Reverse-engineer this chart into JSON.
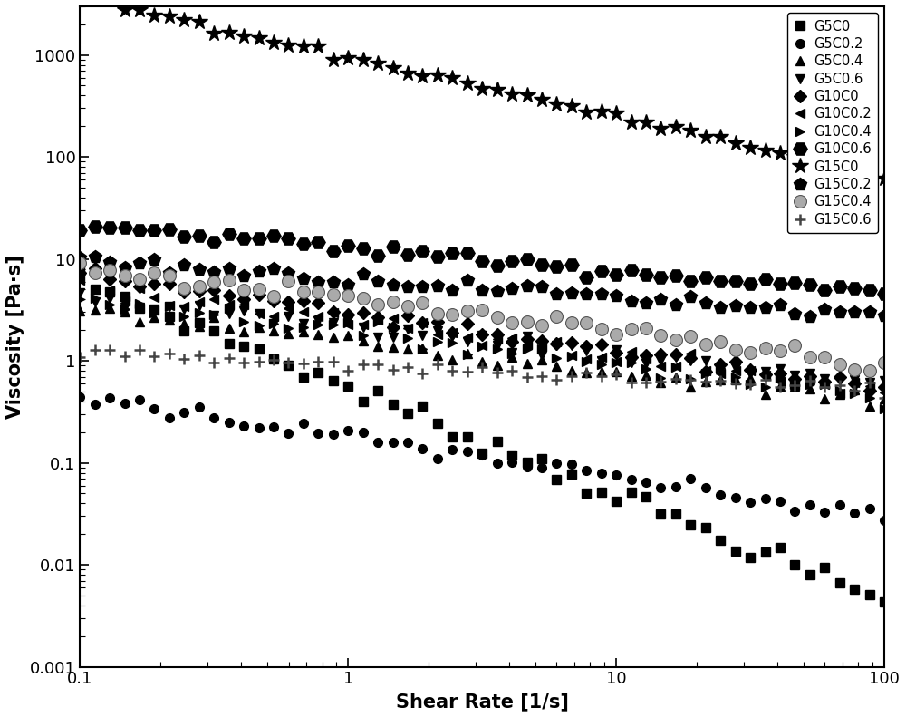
{
  "title": "",
  "xlabel": "Shear Rate [1/s]",
  "ylabel": "Viscosity [Pa·s]",
  "xlim": [
    0.1,
    100
  ],
  "ylim": [
    0.001,
    3000
  ],
  "series": [
    {
      "label": "G5C0",
      "marker": "s",
      "color": "#000000",
      "markersize": 7,
      "K": 0.55,
      "n": -1.05,
      "noise": 0.12
    },
    {
      "label": "G5C0.2",
      "marker": "o",
      "color": "#000000",
      "markersize": 7,
      "K": 0.18,
      "n": -0.4,
      "noise": 0.1
    },
    {
      "label": "G5C0.4",
      "marker": "^",
      "color": "#000000",
      "markersize": 7,
      "K": 1.6,
      "n": -0.3,
      "noise": 0.1
    },
    {
      "label": "G5C0.6",
      "marker": "v",
      "color": "#000000",
      "markersize": 7,
      "K": 2.2,
      "n": -0.28,
      "noise": 0.1
    },
    {
      "label": "G10C0",
      "marker": "D",
      "color": "#000000",
      "markersize": 7,
      "K": 3.0,
      "n": -0.38,
      "noise": 0.1
    },
    {
      "label": "G10C0.2",
      "marker": "<",
      "color": "#000000",
      "markersize": 7,
      "K": 2.5,
      "n": -0.35,
      "noise": 0.1
    },
    {
      "label": "G10C0.4",
      "marker": ">",
      "color": "#000000",
      "markersize": 7,
      "K": 2.0,
      "n": -0.32,
      "noise": 0.1
    },
    {
      "label": "G10C0.6",
      "marker": "H",
      "color": "#000000",
      "markersize": 11,
      "K": 13.0,
      "n": -0.22,
      "noise": 0.08
    },
    {
      "label": "G15C0",
      "marker": "*",
      "color": "#000000",
      "markersize": 13,
      "K": 950.0,
      "n": -0.58,
      "noise": 0.05
    },
    {
      "label": "G15C0.2",
      "marker": "p",
      "color": "#000000",
      "markersize": 10,
      "K": 6.5,
      "n": -0.18,
      "noise": 0.08
    },
    {
      "label": "G15C0.4",
      "marker": "o",
      "color": "#888888",
      "markersize": 10,
      "K": 4.0,
      "n": -0.32,
      "noise": 0.1,
      "gray": true
    },
    {
      "label": "G15C0.6",
      "marker": "+",
      "color": "#444444",
      "markersize": 9,
      "K": 0.9,
      "n": -0.12,
      "noise": 0.08
    }
  ],
  "n_points": 55,
  "background_color": "#ffffff",
  "tick_labelsize": 13,
  "axis_labelsize": 15,
  "legend_fontsize": 10.5
}
